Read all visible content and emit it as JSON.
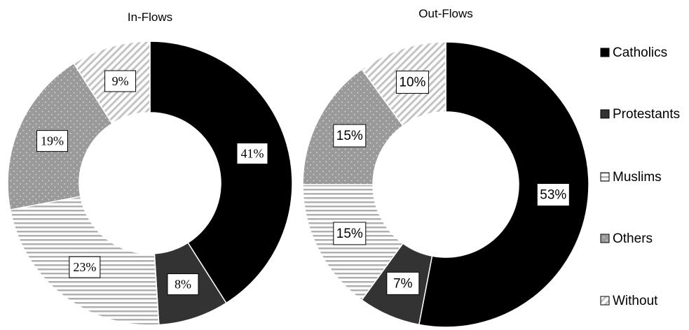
{
  "chart_data": [
    {
      "type": "pie",
      "title": "In-Flows",
      "categories": [
        "Catholics",
        "Protestants",
        "Muslims",
        "Others",
        "Without"
      ],
      "values": [
        41,
        8,
        23,
        19,
        9
      ],
      "labels": [
        "41%",
        "8%",
        "23%",
        "19%",
        "9%"
      ]
    },
    {
      "type": "pie",
      "title": "Out-Flows",
      "categories": [
        "Catholics",
        "Protestants",
        "Muslims",
        "Others",
        "Without"
      ],
      "values": [
        53,
        7,
        15,
        15,
        10
      ],
      "labels": [
        "53%",
        "7%",
        "15%",
        "15%",
        "10%"
      ]
    }
  ],
  "legend": {
    "position": "right",
    "items": [
      {
        "label": "Catholics",
        "pattern": "solid-black"
      },
      {
        "label": "Protestants",
        "pattern": "solid-dark-gray"
      },
      {
        "label": "Muslims",
        "pattern": "horizontal-stripes"
      },
      {
        "label": "Others",
        "pattern": "dotted-gray"
      },
      {
        "label": "Without",
        "pattern": "diagonal-stripes"
      }
    ]
  },
  "colors": {
    "Catholics": "#000000",
    "Protestants": "#333333",
    "Muslims": "#ffffff",
    "Others": "#9a9a9a",
    "Without": "#ffffff",
    "stroke": "#ffffff"
  }
}
